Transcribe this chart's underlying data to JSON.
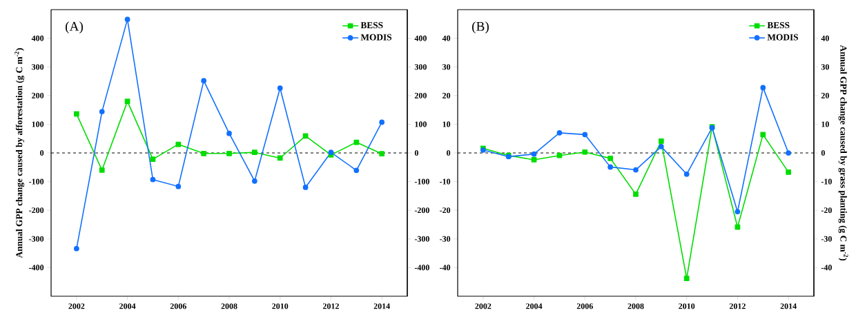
{
  "chart_data": [
    {
      "type": "line",
      "x": [
        2002,
        2003,
        2004,
        2005,
        2006,
        2007,
        2008,
        2009,
        2010,
        2011,
        2012,
        2013,
        2014
      ],
      "series": [
        {
          "name": "BESS",
          "color": "#00dd00",
          "marker": "square",
          "values": [
            136,
            -60,
            180,
            -22,
            30,
            -2,
            -2,
            2,
            -18,
            59,
            -7,
            37,
            -3
          ]
        },
        {
          "name": "MODIS",
          "color": "#1170ff",
          "marker": "circle",
          "values": [
            -334,
            144,
            466,
            -93,
            -117,
            252,
            68,
            -98,
            226,
            -120,
            2,
            -61,
            107
          ]
        }
      ],
      "xlim": [
        2001,
        2015
      ],
      "xticks": [
        2002,
        2004,
        2006,
        2008,
        2010,
        2012,
        2014
      ],
      "ylim": [
        -500,
        500
      ],
      "yticks": [
        -400,
        -300,
        -200,
        -100,
        0,
        100,
        200,
        300,
        400
      ],
      "y2lim": [
        -500,
        500
      ],
      "y2ticks": [
        -400,
        -300,
        -200,
        -100,
        0,
        100,
        200,
        300,
        400
      ],
      "ylabel": "Annual GPP change caused by afforestation (g C m$^{-2}$)",
      "ref_lines": [
        {
          "axis": "y",
          "value": 0,
          "color": "#000000",
          "line_style": "dashed"
        }
      ],
      "annotations": [
        "(A)"
      ],
      "legend": "top right",
      "grid": false
    },
    {
      "type": "line",
      "x": [
        2002,
        2003,
        2004,
        2005,
        2006,
        2007,
        2008,
        2009,
        2010,
        2011,
        2012,
        2013,
        2014
      ],
      "series": [
        {
          "name": "BESS",
          "color": "#00dd00",
          "marker": "square",
          "values": [
            1.6,
            -0.9,
            -2.4,
            -0.9,
            0.3,
            -1.9,
            -14.4,
            4.1,
            -43.8,
            9.1,
            -25.9,
            6.4,
            -6.7
          ]
        },
        {
          "name": "MODIS",
          "color": "#1170ff",
          "marker": "circle",
          "values": [
            1.0,
            -1.3,
            -0.4,
            7.0,
            6.4,
            -4.9,
            -5.9,
            2.2,
            -7.4,
            8.8,
            -20.5,
            22.8,
            0
          ]
        }
      ],
      "xlim": [
        2001,
        2015
      ],
      "xticks": [
        2002,
        2004,
        2006,
        2008,
        2010,
        2012,
        2014
      ],
      "ylim": [
        -50,
        50
      ],
      "yticks": [
        -40,
        -30,
        -20,
        -10,
        0,
        10,
        20,
        30,
        40
      ],
      "y2lim": [
        -50,
        50
      ],
      "y2ticks": [
        -40,
        -30,
        -20,
        -10,
        0,
        10,
        20,
        30,
        40
      ],
      "y2label": "Annual GPP change caused by grass planting (g C m$^{-2}$)",
      "ref_lines": [
        {
          "axis": "y",
          "value": 0,
          "color": "#000000",
          "line_style": "dashed"
        }
      ],
      "annotations": [
        "(B)"
      ],
      "legend": "top right",
      "grid": false
    }
  ]
}
